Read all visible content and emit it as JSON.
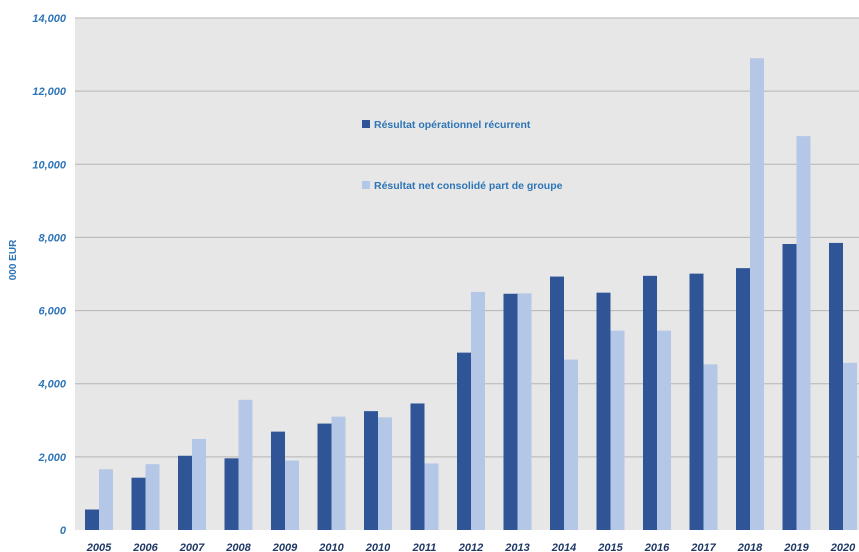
{
  "chart_data": {
    "type": "bar",
    "title": "",
    "xlabel": "",
    "ylabel": "000 EUR",
    "ylim": [
      0,
      14000
    ],
    "yticks": [
      0,
      2000,
      4000,
      6000,
      8000,
      10000,
      12000,
      14000
    ],
    "ytick_labels": [
      "0",
      "2,000",
      "4,000",
      "6,000",
      "8,000",
      "10,000",
      "12,000",
      "14,000"
    ],
    "grid": true,
    "legend_position": "top-center",
    "categories": [
      "2005",
      "2006",
      "2007",
      "2008",
      "2009",
      "2010",
      "2010",
      "2011",
      "2012",
      "2013",
      "2014",
      "2015",
      "2016",
      "2017",
      "2018",
      "2019",
      "2020"
    ],
    "series": [
      {
        "name": "Résultat opérationnel récurrent",
        "color": "#2f5597",
        "values": [
          560,
          1430,
          2030,
          1960,
          2690,
          2910,
          3250,
          3460,
          4850,
          6460,
          6930,
          6490,
          6950,
          7010,
          7160,
          7820,
          7850
        ]
      },
      {
        "name": "Résultat net consolidé part de groupe",
        "color": "#b4c7e7",
        "values": [
          1660,
          1800,
          2490,
          3560,
          1900,
          3100,
          3080,
          1820,
          6510,
          6470,
          4660,
          5450,
          5450,
          4530,
          12900,
          10770,
          4570
        ]
      }
    ]
  }
}
